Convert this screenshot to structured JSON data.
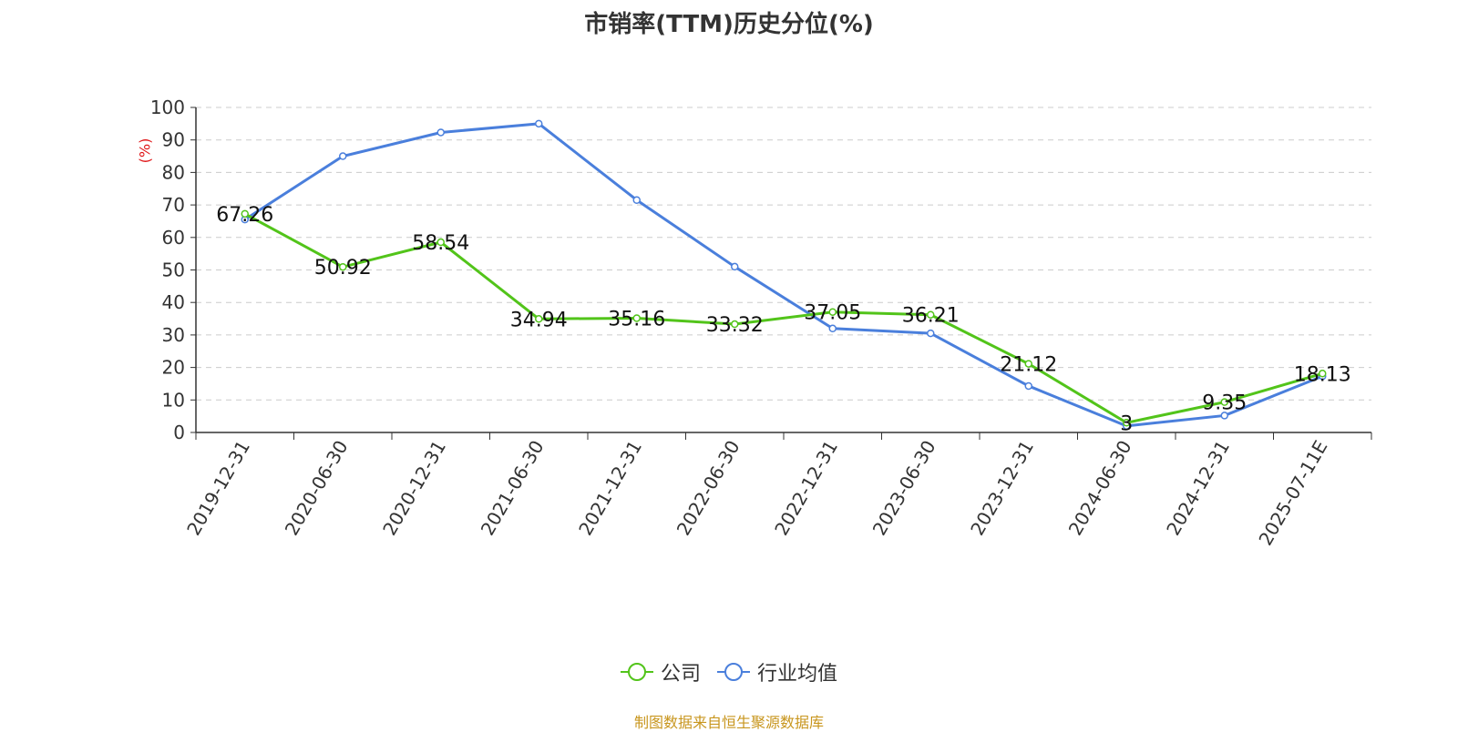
{
  "title": "市销率(TTM)历史分位(%)",
  "source": "制图数据来自恒生聚源数据库",
  "colors": {
    "company": "#52c41a",
    "industry": "#4a7fdc",
    "unit": "#e0191b",
    "source": "#c8961e",
    "grid": "#cccccc",
    "axis": "#333333"
  },
  "chart_data": {
    "type": "line",
    "title": "市销率(TTM)历史分位(%)",
    "ylabel": "(%)",
    "xlabel": "",
    "ylim": [
      0,
      100
    ],
    "y_ticks": [
      0,
      10,
      20,
      30,
      40,
      50,
      60,
      70,
      80,
      90,
      100
    ],
    "grid": true,
    "legend_position": "bottom-center",
    "categories": [
      "2019-12-31",
      "2020-06-30",
      "2020-12-31",
      "2021-06-30",
      "2021-12-31",
      "2022-06-30",
      "2022-12-31",
      "2023-06-30",
      "2023-12-31",
      "2024-06-30",
      "2024-12-31",
      "2025-07-11E"
    ],
    "series": [
      {
        "name": "公司",
        "color": "#52c41a",
        "values": [
          67.26,
          50.92,
          58.54,
          34.94,
          35.16,
          33.32,
          37.05,
          36.21,
          21.12,
          3,
          9.35,
          18.13
        ],
        "labels": [
          "67.26",
          "50.92",
          "58.54",
          "34.94",
          "35.16",
          "33.32",
          "37.05",
          "36.21",
          "21.12",
          "3",
          "9.35",
          "18.13"
        ]
      },
      {
        "name": "行业均值",
        "color": "#4a7fdc",
        "values": [
          65.5,
          85,
          92.3,
          95,
          71.5,
          51,
          32,
          30.5,
          14.3,
          2,
          5.2,
          17.3
        ]
      }
    ]
  }
}
